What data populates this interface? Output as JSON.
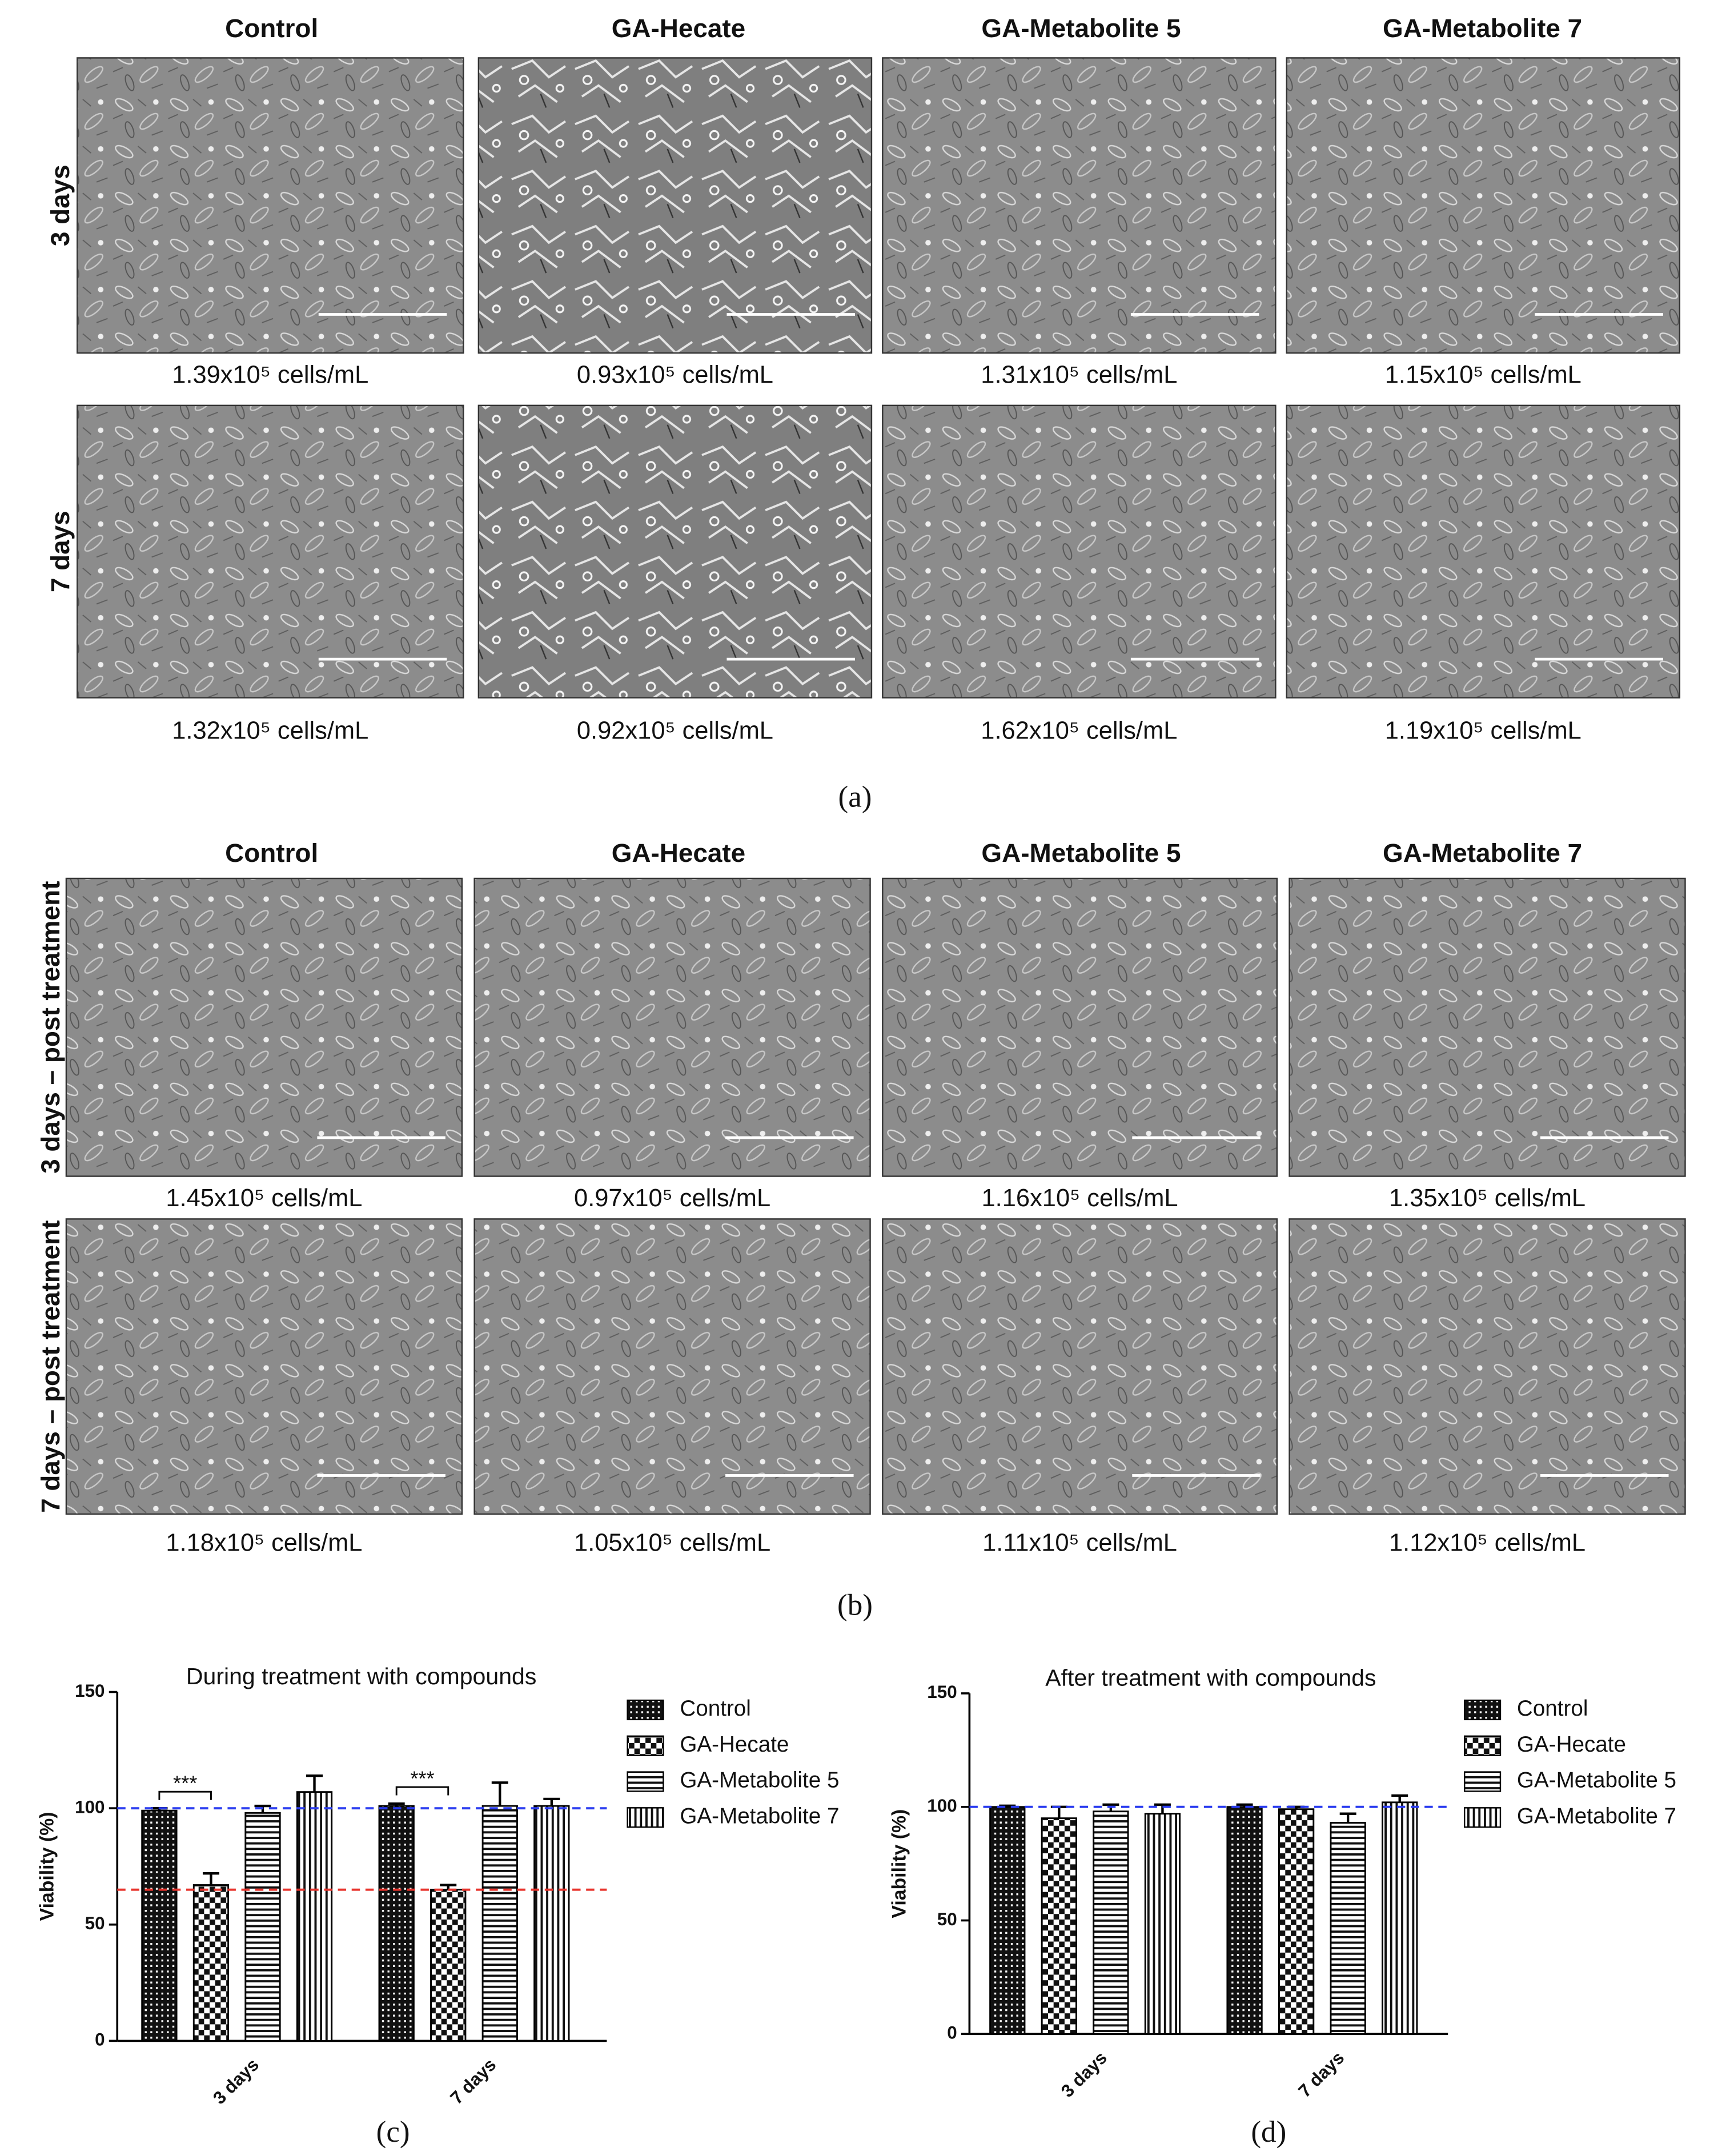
{
  "panel_a": {
    "label": "(a)",
    "columns": [
      "Control",
      "GA-Hecate",
      "GA-Metabolite 5",
      "GA-Metabolite 7"
    ],
    "rows": [
      {
        "label": "3 days",
        "counts": [
          "1.39x10⁵ cells/mL",
          "0.93x10⁵ cells/mL",
          "1.31x10⁵ cells/mL",
          "1.15x10⁵ cells/mL"
        ]
      },
      {
        "label": "7 days",
        "counts": [
          "1.32x10⁵ cells/mL",
          "0.92x10⁵ cells/mL",
          "1.62x10⁵ cells/mL",
          "1.19x10⁵ cells/mL"
        ]
      }
    ]
  },
  "panel_b": {
    "label": "(b)",
    "columns": [
      "Control",
      "GA-Hecate",
      "GA-Metabolite 5",
      "GA-Metabolite 7"
    ],
    "rows": [
      {
        "label": "3 days – post treatment",
        "counts": [
          "1.45x10⁵ cells/mL",
          "0.97x10⁵ cells/mL",
          "1.16x10⁵ cells/mL",
          "1.35x10⁵ cells/mL"
        ]
      },
      {
        "label": "7 days – post treatment",
        "counts": [
          "1.18x10⁵ cells/mL",
          "1.05x10⁵ cells/mL",
          "1.11x10⁵ cells/mL",
          "1.12x10⁵ cells/mL"
        ]
      }
    ]
  },
  "chart_data": [
    {
      "type": "bar",
      "panel_label": "(c)",
      "title": "During treatment with compounds",
      "y_label": "Viability (%)",
      "categories": [
        "3 days",
        "7 days"
      ],
      "series": [
        {
          "name": "Control",
          "pattern": "crosshatch",
          "color": "#000000",
          "values": [
            99,
            101
          ],
          "errors": [
            1,
            1
          ]
        },
        {
          "name": "GA-Hecate",
          "pattern": "checker",
          "color": "#000000",
          "values": [
            67,
            65
          ],
          "errors": [
            5,
            2
          ]
        },
        {
          "name": "GA-Metabolite 5",
          "pattern": "horizontal",
          "color": "#000000",
          "values": [
            98,
            101
          ],
          "errors": [
            3,
            10
          ]
        },
        {
          "name": "GA-Metabolite 7",
          "pattern": "vertical",
          "color": "#000000",
          "values": [
            107,
            101
          ],
          "errors": [
            7,
            3
          ]
        }
      ],
      "ylim": [
        0,
        150
      ],
      "yticks": [
        0,
        50,
        100,
        150
      ],
      "reference_lines": [
        {
          "value": 100,
          "color": "#2a3cf0"
        },
        {
          "value": 65,
          "color": "#e8322a"
        }
      ],
      "significance": [
        {
          "label": "***",
          "category": "3 days",
          "series": [
            "Control",
            "GA-Hecate"
          ]
        },
        {
          "label": "***",
          "category": "7 days",
          "series": [
            "Control",
            "GA-Hecate"
          ]
        }
      ]
    },
    {
      "type": "bar",
      "panel_label": "(d)",
      "title": "After treatment with compounds",
      "y_label": "Viability (%)",
      "categories": [
        "3 days",
        "7 days"
      ],
      "series": [
        {
          "name": "Control",
          "pattern": "crosshatch",
          "color": "#000000",
          "values": [
            100,
            100
          ],
          "errors": [
            0.5,
            1
          ]
        },
        {
          "name": "GA-Hecate",
          "pattern": "checker",
          "color": "#000000",
          "values": [
            95,
            99
          ],
          "errors": [
            5,
            1
          ]
        },
        {
          "name": "GA-Metabolite 5",
          "pattern": "horizontal",
          "color": "#000000",
          "values": [
            98,
            93
          ],
          "errors": [
            3,
            4
          ]
        },
        {
          "name": "GA-Metabolite 7",
          "pattern": "vertical",
          "color": "#000000",
          "values": [
            97,
            102
          ],
          "errors": [
            4,
            3
          ]
        }
      ],
      "ylim": [
        0,
        150
      ],
      "yticks": [
        0,
        50,
        100,
        150
      ],
      "reference_lines": [
        {
          "value": 100,
          "color": "#2a3cf0"
        }
      ],
      "significance": []
    }
  ]
}
